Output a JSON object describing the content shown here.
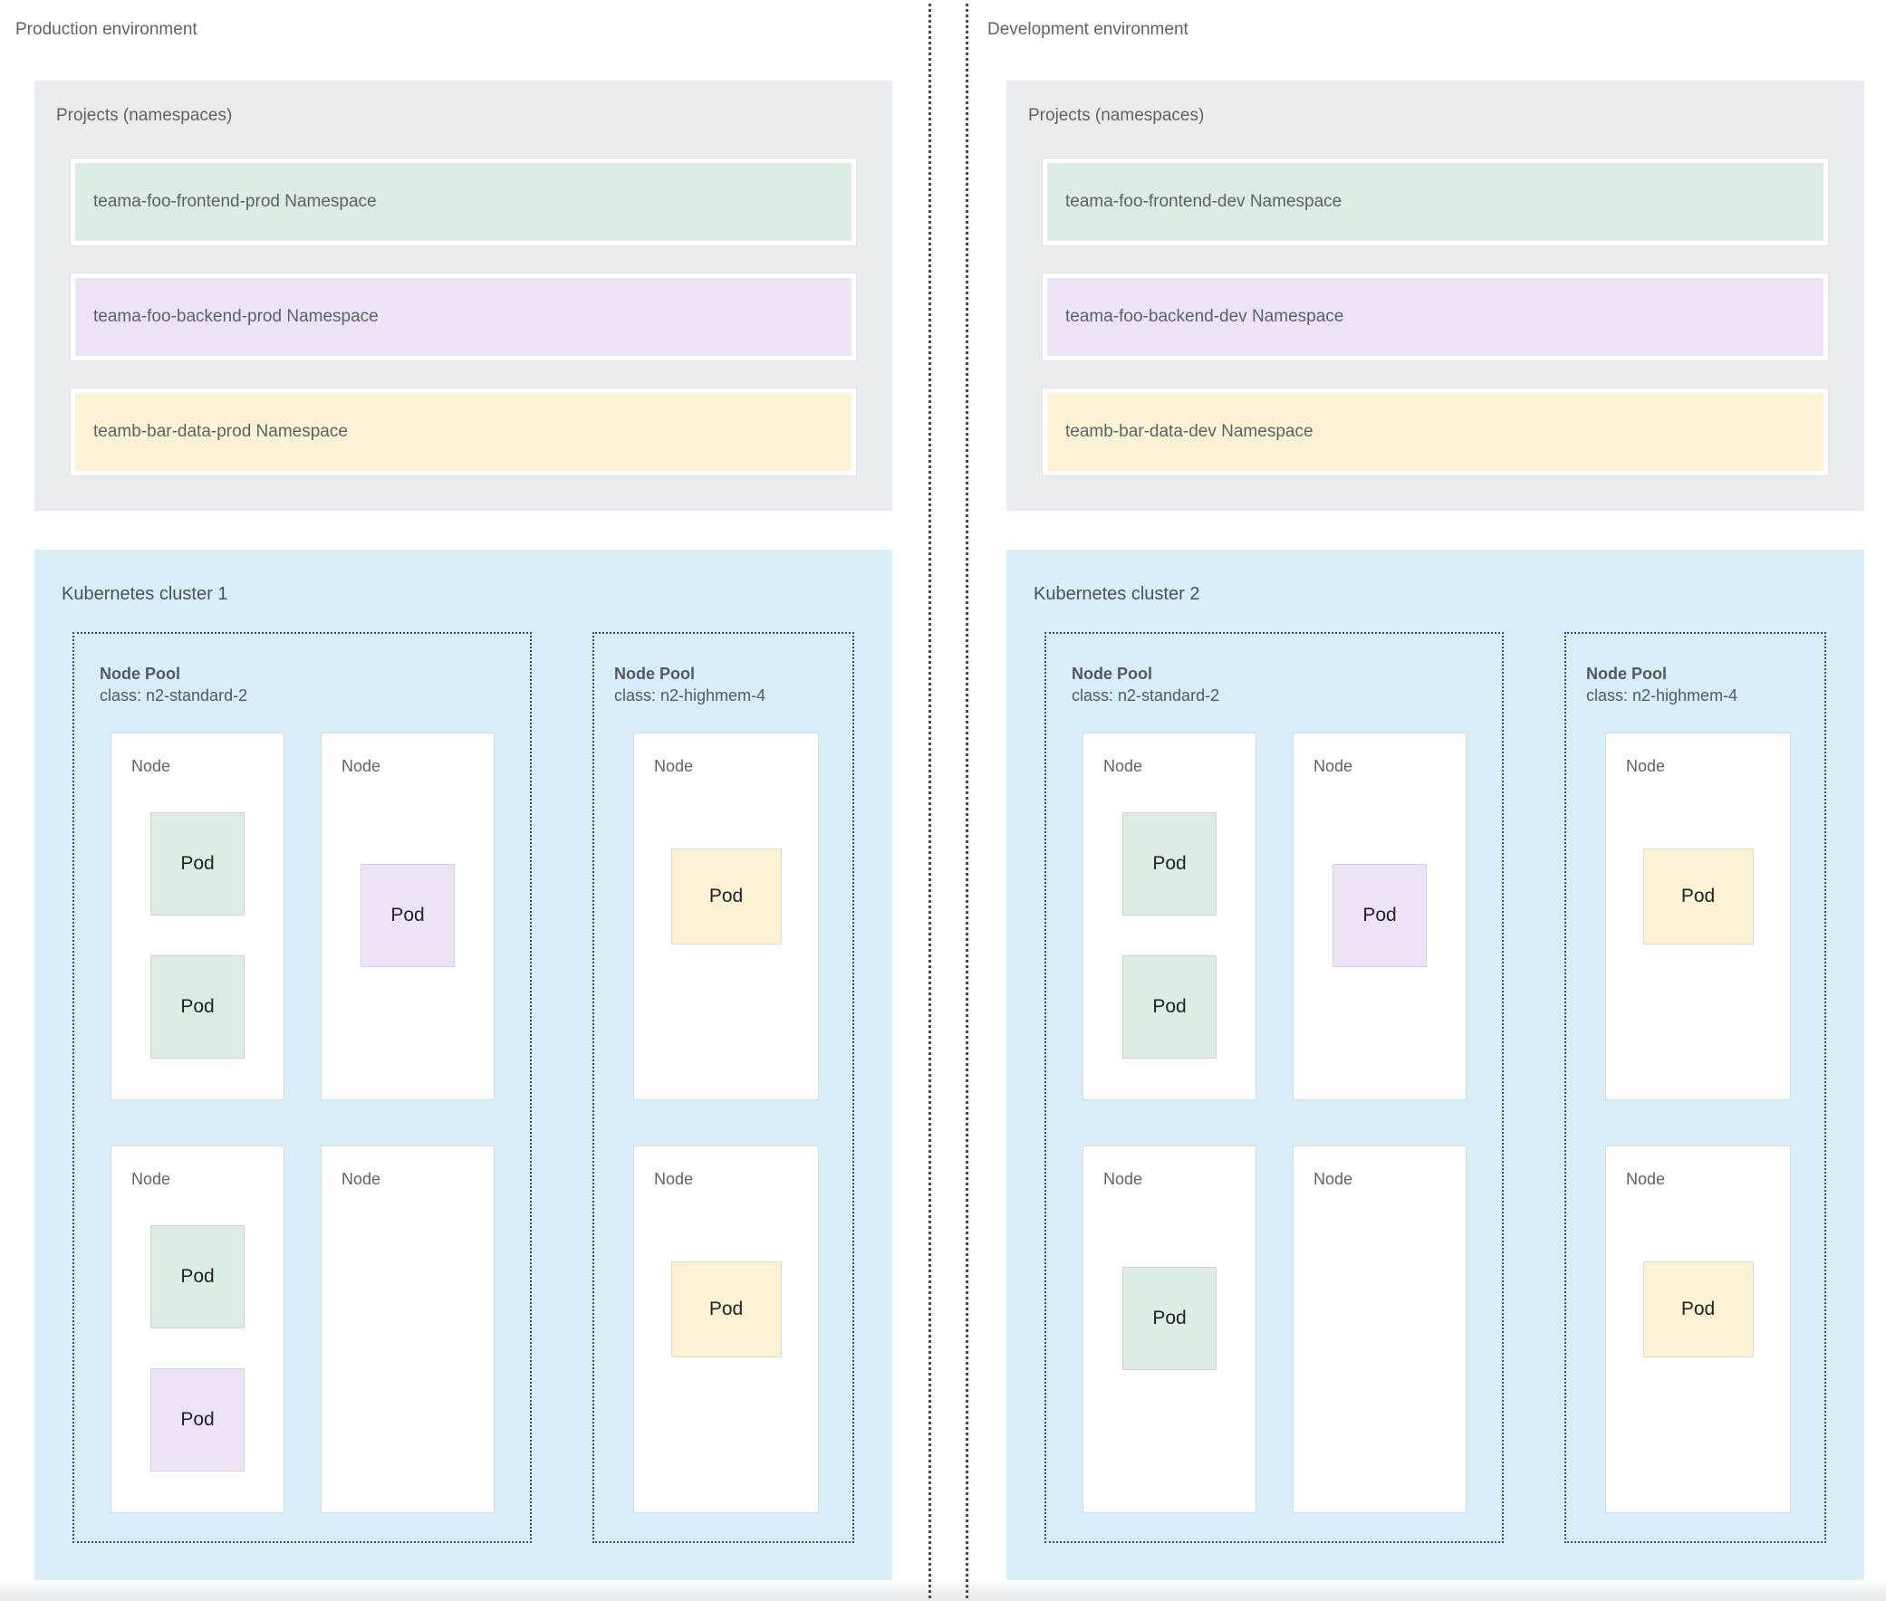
{
  "colors": {
    "page_bg": "#ffffff",
    "projects_box_bg": "#e9ebee",
    "cluster_box_bg": "#d8edfa",
    "green": "#dcece2",
    "purple": "#ece4f6",
    "yellow": "#fbf2d5"
  },
  "environments": [
    {
      "label": "Production environment",
      "projects": {
        "title": "Projects (namespaces)",
        "namespaces": [
          {
            "label": "teama-foo-frontend-prod Namespace",
            "color": "green"
          },
          {
            "label": "teama-foo-backend-prod Namespace",
            "color": "purple"
          },
          {
            "label": "teamb-bar-data-prod Namespace",
            "color": "yellow"
          }
        ]
      },
      "cluster": {
        "title": "Kubernetes cluster 1",
        "node_pools": [
          {
            "title": "Node Pool",
            "class_label": "class: n2-standard-2",
            "nodes": [
              {
                "label": "Node",
                "pods": [
                  {
                    "label": "Pod",
                    "color": "green"
                  },
                  {
                    "label": "Pod",
                    "color": "green"
                  }
                ]
              },
              {
                "label": "Node",
                "pods": [
                  {
                    "label": "Pod",
                    "color": "purple"
                  }
                ]
              },
              {
                "label": "Node",
                "pods": [
                  {
                    "label": "Pod",
                    "color": "green"
                  },
                  {
                    "label": "Pod",
                    "color": "purple"
                  }
                ]
              },
              {
                "label": "Node",
                "pods": []
              }
            ]
          },
          {
            "title": "Node Pool",
            "class_label": "class: n2-highmem-4",
            "nodes": [
              {
                "label": "Node",
                "pods": [
                  {
                    "label": "Pod",
                    "color": "yellow"
                  }
                ]
              },
              {
                "label": "Node",
                "pods": [
                  {
                    "label": "Pod",
                    "color": "yellow"
                  }
                ]
              }
            ]
          }
        ]
      }
    },
    {
      "label": "Development environment",
      "projects": {
        "title": "Projects (namespaces)",
        "namespaces": [
          {
            "label": "teama-foo-frontend-dev Namespace",
            "color": "green"
          },
          {
            "label": "teama-foo-backend-dev Namespace",
            "color": "purple"
          },
          {
            "label": "teamb-bar-data-dev Namespace",
            "color": "yellow"
          }
        ]
      },
      "cluster": {
        "title": "Kubernetes cluster 2",
        "node_pools": [
          {
            "title": "Node Pool",
            "class_label": "class: n2-standard-2",
            "nodes": [
              {
                "label": "Node",
                "pods": [
                  {
                    "label": "Pod",
                    "color": "green"
                  },
                  {
                    "label": "Pod",
                    "color": "green"
                  }
                ]
              },
              {
                "label": "Node",
                "pods": [
                  {
                    "label": "Pod",
                    "color": "purple"
                  }
                ]
              },
              {
                "label": "Node",
                "pods": [
                  {
                    "label": "Pod",
                    "color": "green"
                  }
                ]
              },
              {
                "label": "Node",
                "pods": []
              }
            ]
          },
          {
            "title": "Node Pool",
            "class_label": "class: n2-highmem-4",
            "nodes": [
              {
                "label": "Node",
                "pods": [
                  {
                    "label": "Pod",
                    "color": "yellow"
                  }
                ]
              },
              {
                "label": "Node",
                "pods": [
                  {
                    "label": "Pod",
                    "color": "yellow"
                  }
                ]
              }
            ]
          }
        ]
      }
    }
  ]
}
